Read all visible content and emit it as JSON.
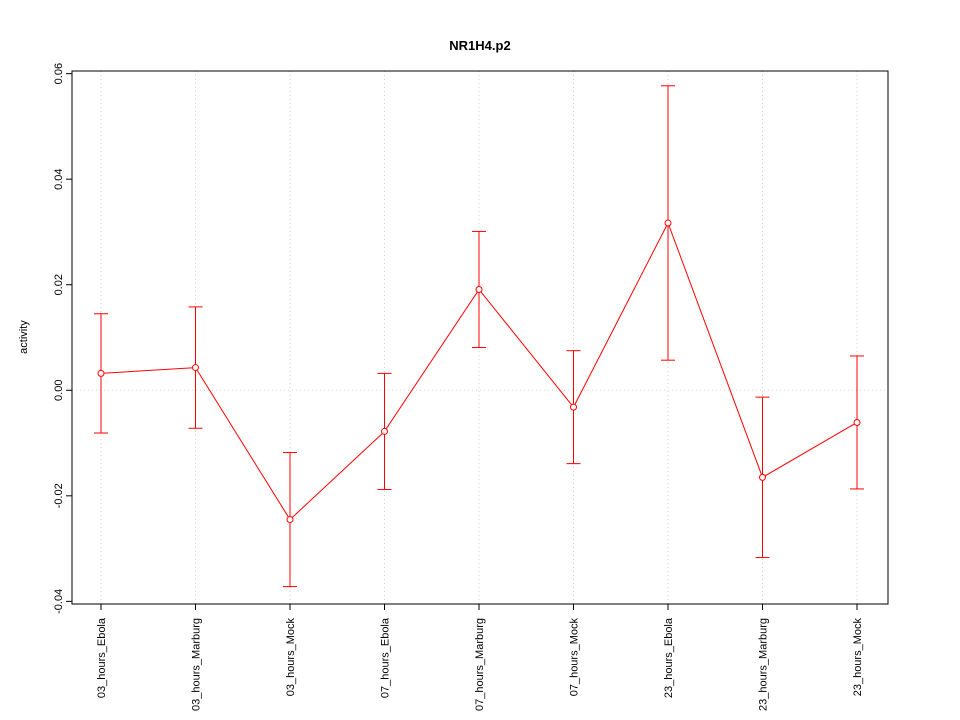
{
  "chart_data": {
    "type": "line",
    "title": "NR1H4.p2",
    "xlabel": "",
    "ylabel": "activity",
    "categories": [
      "03_hours_Ebola",
      "03_hours_Marburg",
      "03_hours_Mock",
      "07_hours_Ebola",
      "07_hours_Marburg",
      "07_hours_Mock",
      "23_hours_Ebola",
      "23_hours_Marburg",
      "23_hours_Mock"
    ],
    "series": [
      {
        "values": [
          0.0032,
          0.0043,
          -0.0245,
          -0.0078,
          0.0191,
          -0.0032,
          0.0317,
          -0.0165,
          -0.0061
        ],
        "upper": [
          0.0145,
          0.0158,
          -0.0118,
          0.0032,
          0.0301,
          0.0075,
          0.0577,
          -0.0013,
          0.0065
        ],
        "lower": [
          -0.0081,
          -0.0072,
          -0.0372,
          -0.0188,
          0.0081,
          -0.0139,
          0.0057,
          -0.0317,
          -0.0187
        ],
        "color": "#ff0000"
      }
    ],
    "yticks": [
      -0.04,
      -0.02,
      0.0,
      0.02,
      0.04,
      0.06
    ],
    "ytick_labels": [
      "-0.04",
      "-0.02",
      "0.00",
      "0.02",
      "0.04",
      "0.06"
    ],
    "ylim": [
      -0.0405,
      0.0605
    ],
    "grid": true,
    "reference_line": 0.0
  }
}
